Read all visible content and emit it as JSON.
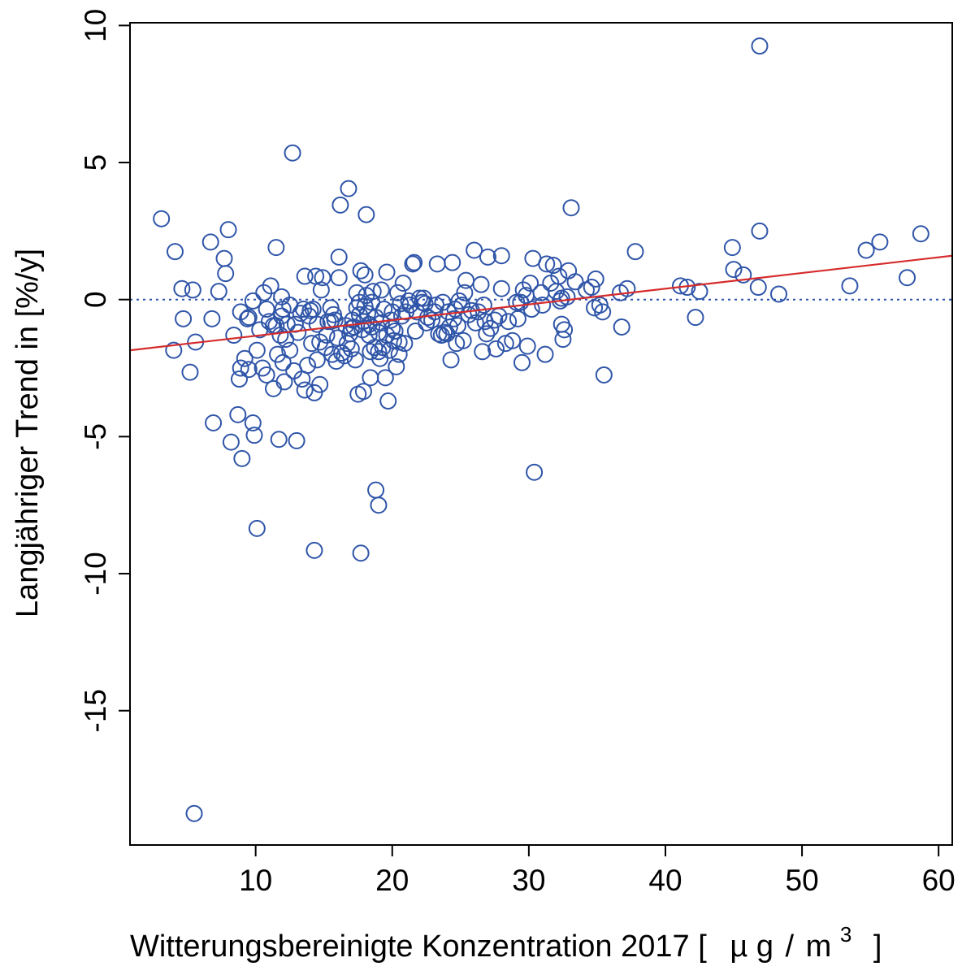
{
  "chart_data": {
    "type": "scatter",
    "xlabel": "Witterungsbereinigte Konzentration 2017 [ µg/m³ ]",
    "xlabel_main": "Witterungsbereinigte Konzentration 2017 [",
    "xlabel_unit_mu": "µ",
    "xlabel_unit_g": "g",
    "xlabel_unit_slash": "/",
    "xlabel_unit_m": "m",
    "xlabel_unit_exp": "3",
    "xlabel_close": "]",
    "ylabel": "Langjähriger Trend in [%/y]",
    "xlim": [
      0.8,
      61
    ],
    "ylim": [
      -19.9,
      10.1
    ],
    "xticks": [
      10,
      20,
      30,
      40,
      50,
      60
    ],
    "yticks": [
      10,
      5,
      0,
      -5,
      -10,
      -15
    ],
    "colors": {
      "points": "#2f55a8",
      "trend": "#d62b2b",
      "reference": "#2f55a8",
      "frame": "#000000"
    },
    "reference_line": {
      "y": 0,
      "style": "dotted"
    },
    "trend_line": {
      "x": [
        0.8,
        61
      ],
      "y": [
        -1.85,
        1.6
      ]
    },
    "points": [
      [
        3.1,
        2.95
      ],
      [
        4.0,
        -1.85
      ],
      [
        4.1,
        1.75
      ],
      [
        4.6,
        0.4
      ],
      [
        4.7,
        -0.7
      ],
      [
        5.2,
        -2.65
      ],
      [
        5.4,
        0.35
      ],
      [
        5.6,
        -1.55
      ],
      [
        6.7,
        2.1
      ],
      [
        6.8,
        -0.7
      ],
      [
        6.9,
        -4.5
      ],
      [
        7.3,
        0.3
      ],
      [
        7.7,
        1.5
      ],
      [
        7.8,
        0.95
      ],
      [
        8.0,
        2.55
      ],
      [
        8.2,
        -5.2
      ],
      [
        8.4,
        -1.3
      ],
      [
        8.7,
        -4.2
      ],
      [
        8.8,
        -2.9
      ],
      [
        8.9,
        -2.5
      ],
      [
        8.9,
        -0.45
      ],
      [
        9.0,
        -5.8
      ],
      [
        9.2,
        -2.15
      ],
      [
        9.4,
        -0.7
      ],
      [
        9.5,
        -2.55
      ],
      [
        9.8,
        -0.05
      ],
      [
        9.8,
        -4.5
      ],
      [
        9.9,
        -4.95
      ],
      [
        10.1,
        -1.85
      ],
      [
        10.1,
        -8.35
      ],
      [
        10.3,
        -1.1
      ],
      [
        10.5,
        -2.5
      ],
      [
        10.6,
        0.25
      ],
      [
        10.8,
        -0.35
      ],
      [
        10.8,
        -2.75
      ],
      [
        11.0,
        -0.8
      ],
      [
        11.1,
        0.5
      ],
      [
        11.3,
        -3.25
      ],
      [
        11.3,
        -0.95
      ],
      [
        11.5,
        1.9
      ],
      [
        11.5,
        -0.95
      ],
      [
        11.6,
        -2.0
      ],
      [
        11.7,
        -5.1
      ],
      [
        11.8,
        -1.3
      ],
      [
        11.9,
        -0.6
      ],
      [
        11.9,
        0.1
      ],
      [
        12.0,
        -2.3
      ],
      [
        12.1,
        -3.0
      ],
      [
        12.2,
        -1.45
      ],
      [
        12.3,
        -0.9
      ],
      [
        12.5,
        -0.2
      ],
      [
        12.5,
        -1.85
      ],
      [
        12.7,
        5.35
      ],
      [
        12.8,
        -2.6
      ],
      [
        12.9,
        -0.9
      ],
      [
        13.0,
        -5.15
      ],
      [
        13.1,
        -1.2
      ],
      [
        13.3,
        -0.5
      ],
      [
        13.4,
        -2.9
      ],
      [
        13.5,
        -0.35
      ],
      [
        13.6,
        0.85
      ],
      [
        13.6,
        -3.3
      ],
      [
        13.8,
        -2.4
      ],
      [
        13.9,
        -0.6
      ],
      [
        14.0,
        -0.4
      ],
      [
        14.1,
        -1.6
      ],
      [
        14.2,
        -0.35
      ],
      [
        14.3,
        -3.4
      ],
      [
        14.3,
        -9.15
      ],
      [
        14.4,
        0.85
      ],
      [
        14.5,
        -0.9
      ],
      [
        14.5,
        -2.2
      ],
      [
        14.7,
        -1.55
      ],
      [
        14.7,
        -3.1
      ],
      [
        14.8,
        0.35
      ],
      [
        14.9,
        0.8
      ],
      [
        15.1,
        -1.75
      ],
      [
        15.2,
        -1.3
      ],
      [
        15.3,
        -0.8
      ],
      [
        15.5,
        -0.3
      ],
      [
        15.6,
        -2.0
      ],
      [
        15.7,
        -0.55
      ],
      [
        15.8,
        -0.75
      ],
      [
        15.9,
        -2.25
      ],
      [
        16.0,
        -1.4
      ],
      [
        16.1,
        0.8
      ],
      [
        16.1,
        1.55
      ],
      [
        16.2,
        3.45
      ],
      [
        16.3,
        -1.95
      ],
      [
        16.5,
        -2.05
      ],
      [
        16.6,
        -0.95
      ],
      [
        16.7,
        -1.6
      ],
      [
        16.8,
        4.05
      ],
      [
        16.9,
        -1.25
      ],
      [
        17.0,
        -1.8
      ],
      [
        17.1,
        -0.75
      ],
      [
        17.2,
        -1.0
      ],
      [
        17.3,
        -2.2
      ],
      [
        17.4,
        -0.3
      ],
      [
        17.4,
        0.25
      ],
      [
        17.5,
        -3.45
      ],
      [
        17.6,
        -0.55
      ],
      [
        17.6,
        -0.1
      ],
      [
        17.7,
        -9.25
      ],
      [
        17.7,
        1.05
      ],
      [
        17.8,
        -1.1
      ],
      [
        17.9,
        -3.35
      ],
      [
        17.9,
        -0.8
      ],
      [
        18.0,
        -0.25
      ],
      [
        18.0,
        0.9
      ],
      [
        18.1,
        3.1
      ],
      [
        18.1,
        0.15
      ],
      [
        18.2,
        -0.5
      ],
      [
        18.3,
        -1.3
      ],
      [
        18.3,
        -0.9
      ],
      [
        18.4,
        -1.9
      ],
      [
        18.4,
        -2.85
      ],
      [
        18.5,
        -0.1
      ],
      [
        18.6,
        0.3
      ],
      [
        18.7,
        -1.75
      ],
      [
        18.8,
        -6.95
      ],
      [
        18.8,
        -0.65
      ],
      [
        19.0,
        -7.5
      ],
      [
        19.0,
        -1.9
      ],
      [
        19.1,
        -2.15
      ],
      [
        19.2,
        -0.85
      ],
      [
        19.2,
        0.35
      ],
      [
        19.3,
        -1.75
      ],
      [
        19.4,
        -0.35
      ],
      [
        19.5,
        -2.85
      ],
      [
        19.6,
        1.0
      ],
      [
        19.6,
        -1.3
      ],
      [
        19.7,
        -3.7
      ],
      [
        19.8,
        -1.85
      ],
      [
        19.9,
        -0.75
      ],
      [
        20.0,
        -0.45
      ],
      [
        20.1,
        -1.5
      ],
      [
        20.2,
        -1.15
      ],
      [
        20.3,
        -2.45
      ],
      [
        20.4,
        0.25
      ],
      [
        20.5,
        -2.0
      ],
      [
        20.5,
        -1.55
      ],
      [
        20.6,
        -0.15
      ],
      [
        20.7,
        -0.6
      ],
      [
        20.8,
        0.6
      ],
      [
        20.9,
        -1.6
      ],
      [
        21.0,
        -0.45
      ],
      [
        21.2,
        -0.05
      ],
      [
        21.3,
        -0.2
      ],
      [
        21.5,
        1.3
      ],
      [
        21.6,
        1.35
      ],
      [
        21.7,
        -1.15
      ],
      [
        21.8,
        -0.45
      ],
      [
        22.0,
        0.05
      ],
      [
        22.2,
        -0.1
      ],
      [
        22.3,
        0.05
      ],
      [
        22.4,
        -0.15
      ],
      [
        22.6,
        -0.65
      ],
      [
        22.9,
        -0.75
      ],
      [
        23.1,
        -0.45
      ],
      [
        23.2,
        -0.2
      ],
      [
        23.3,
        1.3
      ],
      [
        23.4,
        -1.25
      ],
      [
        23.6,
        -1.3
      ],
      [
        23.7,
        -0.1
      ],
      [
        23.8,
        -1.2
      ],
      [
        24.0,
        -1.25
      ],
      [
        24.1,
        -0.45
      ],
      [
        24.2,
        -1.0
      ],
      [
        24.3,
        -2.2
      ],
      [
        24.4,
        1.35
      ],
      [
        24.5,
        -0.7
      ],
      [
        24.6,
        -0.35
      ],
      [
        24.7,
        -1.6
      ],
      [
        24.9,
        -0.05
      ],
      [
        25.1,
        -0.2
      ],
      [
        25.2,
        -1.5
      ],
      [
        25.3,
        0.25
      ],
      [
        25.4,
        0.7
      ],
      [
        25.6,
        -0.55
      ],
      [
        25.8,
        -0.4
      ],
      [
        26.0,
        1.8
      ],
      [
        26.1,
        -0.85
      ],
      [
        26.3,
        -0.45
      ],
      [
        26.5,
        0.55
      ],
      [
        26.6,
        -1.9
      ],
      [
        26.8,
        -0.8
      ],
      [
        26.9,
        -1.25
      ],
      [
        27.0,
        1.55
      ],
      [
        27.2,
        -1.05
      ],
      [
        27.5,
        -0.75
      ],
      [
        27.6,
        -1.8
      ],
      [
        27.8,
        -0.6
      ],
      [
        28.0,
        0.4
      ],
      [
        28.0,
        1.6
      ],
      [
        28.3,
        -1.6
      ],
      [
        28.5,
        -0.8
      ],
      [
        28.8,
        -1.5
      ],
      [
        29.1,
        -0.1
      ],
      [
        29.2,
        -0.7
      ],
      [
        29.4,
        -0.1
      ],
      [
        29.5,
        -2.3
      ],
      [
        29.6,
        0.35
      ],
      [
        29.8,
        0.15
      ],
      [
        29.9,
        -1.7
      ],
      [
        30.1,
        0.6
      ],
      [
        30.2,
        -0.35
      ],
      [
        30.3,
        1.5
      ],
      [
        30.4,
        -6.3
      ],
      [
        30.9,
        0.25
      ],
      [
        31.0,
        -0.2
      ],
      [
        31.2,
        -2.0
      ],
      [
        31.3,
        1.3
      ],
      [
        31.6,
        0.6
      ],
      [
        31.8,
        1.25
      ],
      [
        32.0,
        0.3
      ],
      [
        32.2,
        0.85
      ],
      [
        32.3,
        -0.05
      ],
      [
        32.4,
        -0.9
      ],
      [
        32.4,
        0.05
      ],
      [
        32.5,
        -1.45
      ],
      [
        32.6,
        -1.1
      ],
      [
        32.8,
        0.1
      ],
      [
        32.9,
        1.05
      ],
      [
        33.1,
        3.35
      ],
      [
        33.4,
        0.65
      ],
      [
        34.2,
        0.35
      ],
      [
        34.6,
        0.45
      ],
      [
        34.8,
        -0.3
      ],
      [
        34.9,
        0.75
      ],
      [
        35.2,
        -0.2
      ],
      [
        35.4,
        -0.45
      ],
      [
        35.5,
        -2.75
      ],
      [
        36.7,
        0.25
      ],
      [
        36.8,
        -1.0
      ],
      [
        37.2,
        0.4
      ],
      [
        37.8,
        1.75
      ],
      [
        41.1,
        0.5
      ],
      [
        41.6,
        0.45
      ],
      [
        42.2,
        -0.65
      ],
      [
        42.5,
        0.3
      ],
      [
        44.9,
        1.9
      ],
      [
        45.0,
        1.1
      ],
      [
        45.7,
        0.9
      ],
      [
        46.8,
        0.45
      ],
      [
        46.9,
        9.25
      ],
      [
        46.9,
        2.5
      ],
      [
        48.3,
        0.2
      ],
      [
        53.5,
        0.5
      ],
      [
        54.7,
        1.8
      ],
      [
        55.7,
        2.1
      ],
      [
        57.7,
        0.8
      ],
      [
        58.7,
        2.4
      ],
      [
        5.5,
        -18.75
      ],
      [
        9.5,
        -0.65
      ],
      [
        12.0,
        -0.35
      ],
      [
        15.5,
        -0.8
      ],
      [
        18.5,
        -1.0
      ],
      [
        20.0,
        -1.05
      ],
      [
        22.5,
        -0.85
      ],
      [
        24.8,
        -0.95
      ],
      [
        26.7,
        -0.2
      ],
      [
        17.0,
        -1.05
      ],
      [
        19.0,
        -1.2
      ]
    ]
  }
}
